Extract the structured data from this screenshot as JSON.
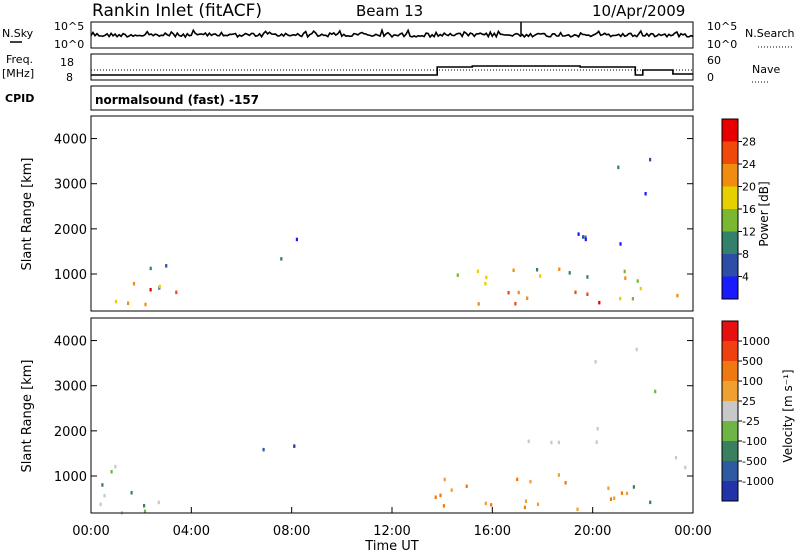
{
  "header": {
    "title": "Rankin Inlet (fitACF)",
    "beam": "Beam 13",
    "date": "10/Apr/2009"
  },
  "nsky_panel": {
    "left_label": "N.Sky",
    "left_ticks": [
      "10^5",
      "10^0"
    ],
    "right_ticks": [
      "10^5",
      "10^0"
    ],
    "right_label": "N.Search"
  },
  "freq_panel": {
    "label_line1": "Freq.",
    "label_line2": "[MHz]",
    "left_ticks": [
      "18",
      "8"
    ],
    "right_ticks": [
      "60",
      "0"
    ],
    "right_label": "Nave"
  },
  "cpid_panel": {
    "label": "CPID",
    "text": "normalsound (fast) -157"
  },
  "chart_data": [
    {
      "type": "heatmap",
      "panel": "power",
      "ylabel": "Slant Range [km]",
      "ylim": [
        180,
        4500
      ],
      "y_ticks": [
        "1000",
        "2000",
        "3000",
        "4000"
      ],
      "y_tick_values": [
        1000,
        2000,
        3000,
        4000
      ],
      "colorbar": {
        "label": "Power [dB]",
        "ticks": [
          "4",
          "8",
          "12",
          "16",
          "20",
          "24",
          "28"
        ],
        "colors": [
          "#1a1aff",
          "#2e4da6",
          "#33806b",
          "#7ab832",
          "#e6d100",
          "#f08c10",
          "#f04a0a",
          "#e60000"
        ]
      }
    },
    {
      "type": "heatmap",
      "panel": "velocity",
      "ylabel": "Slant Range [km]",
      "ylim": [
        180,
        4500
      ],
      "y_ticks": [
        "1000",
        "2000",
        "3000",
        "4000"
      ],
      "y_tick_values": [
        1000,
        2000,
        3000,
        4000
      ],
      "colorbar": {
        "label": "Velocity [m s⁻¹]",
        "ticks": [
          "1000",
          "500",
          "100",
          "25",
          "-25",
          "-100",
          "-500",
          "-1000"
        ],
        "colors": [
          "#2233aa",
          "#2d5aa0",
          "#3a8060",
          "#6db544",
          "#c8c8c8",
          "#f0a030",
          "#f07810",
          "#f04010",
          "#e61010"
        ]
      }
    }
  ],
  "x_axis": {
    "ticks": [
      "00:00",
      "04:00",
      "08:00",
      "12:00",
      "16:00",
      "20:00",
      "00:00"
    ],
    "tick_hours": [
      0,
      4,
      8,
      12,
      16,
      20,
      24
    ],
    "label": "Time UT",
    "range_hours": [
      0,
      24
    ]
  }
}
